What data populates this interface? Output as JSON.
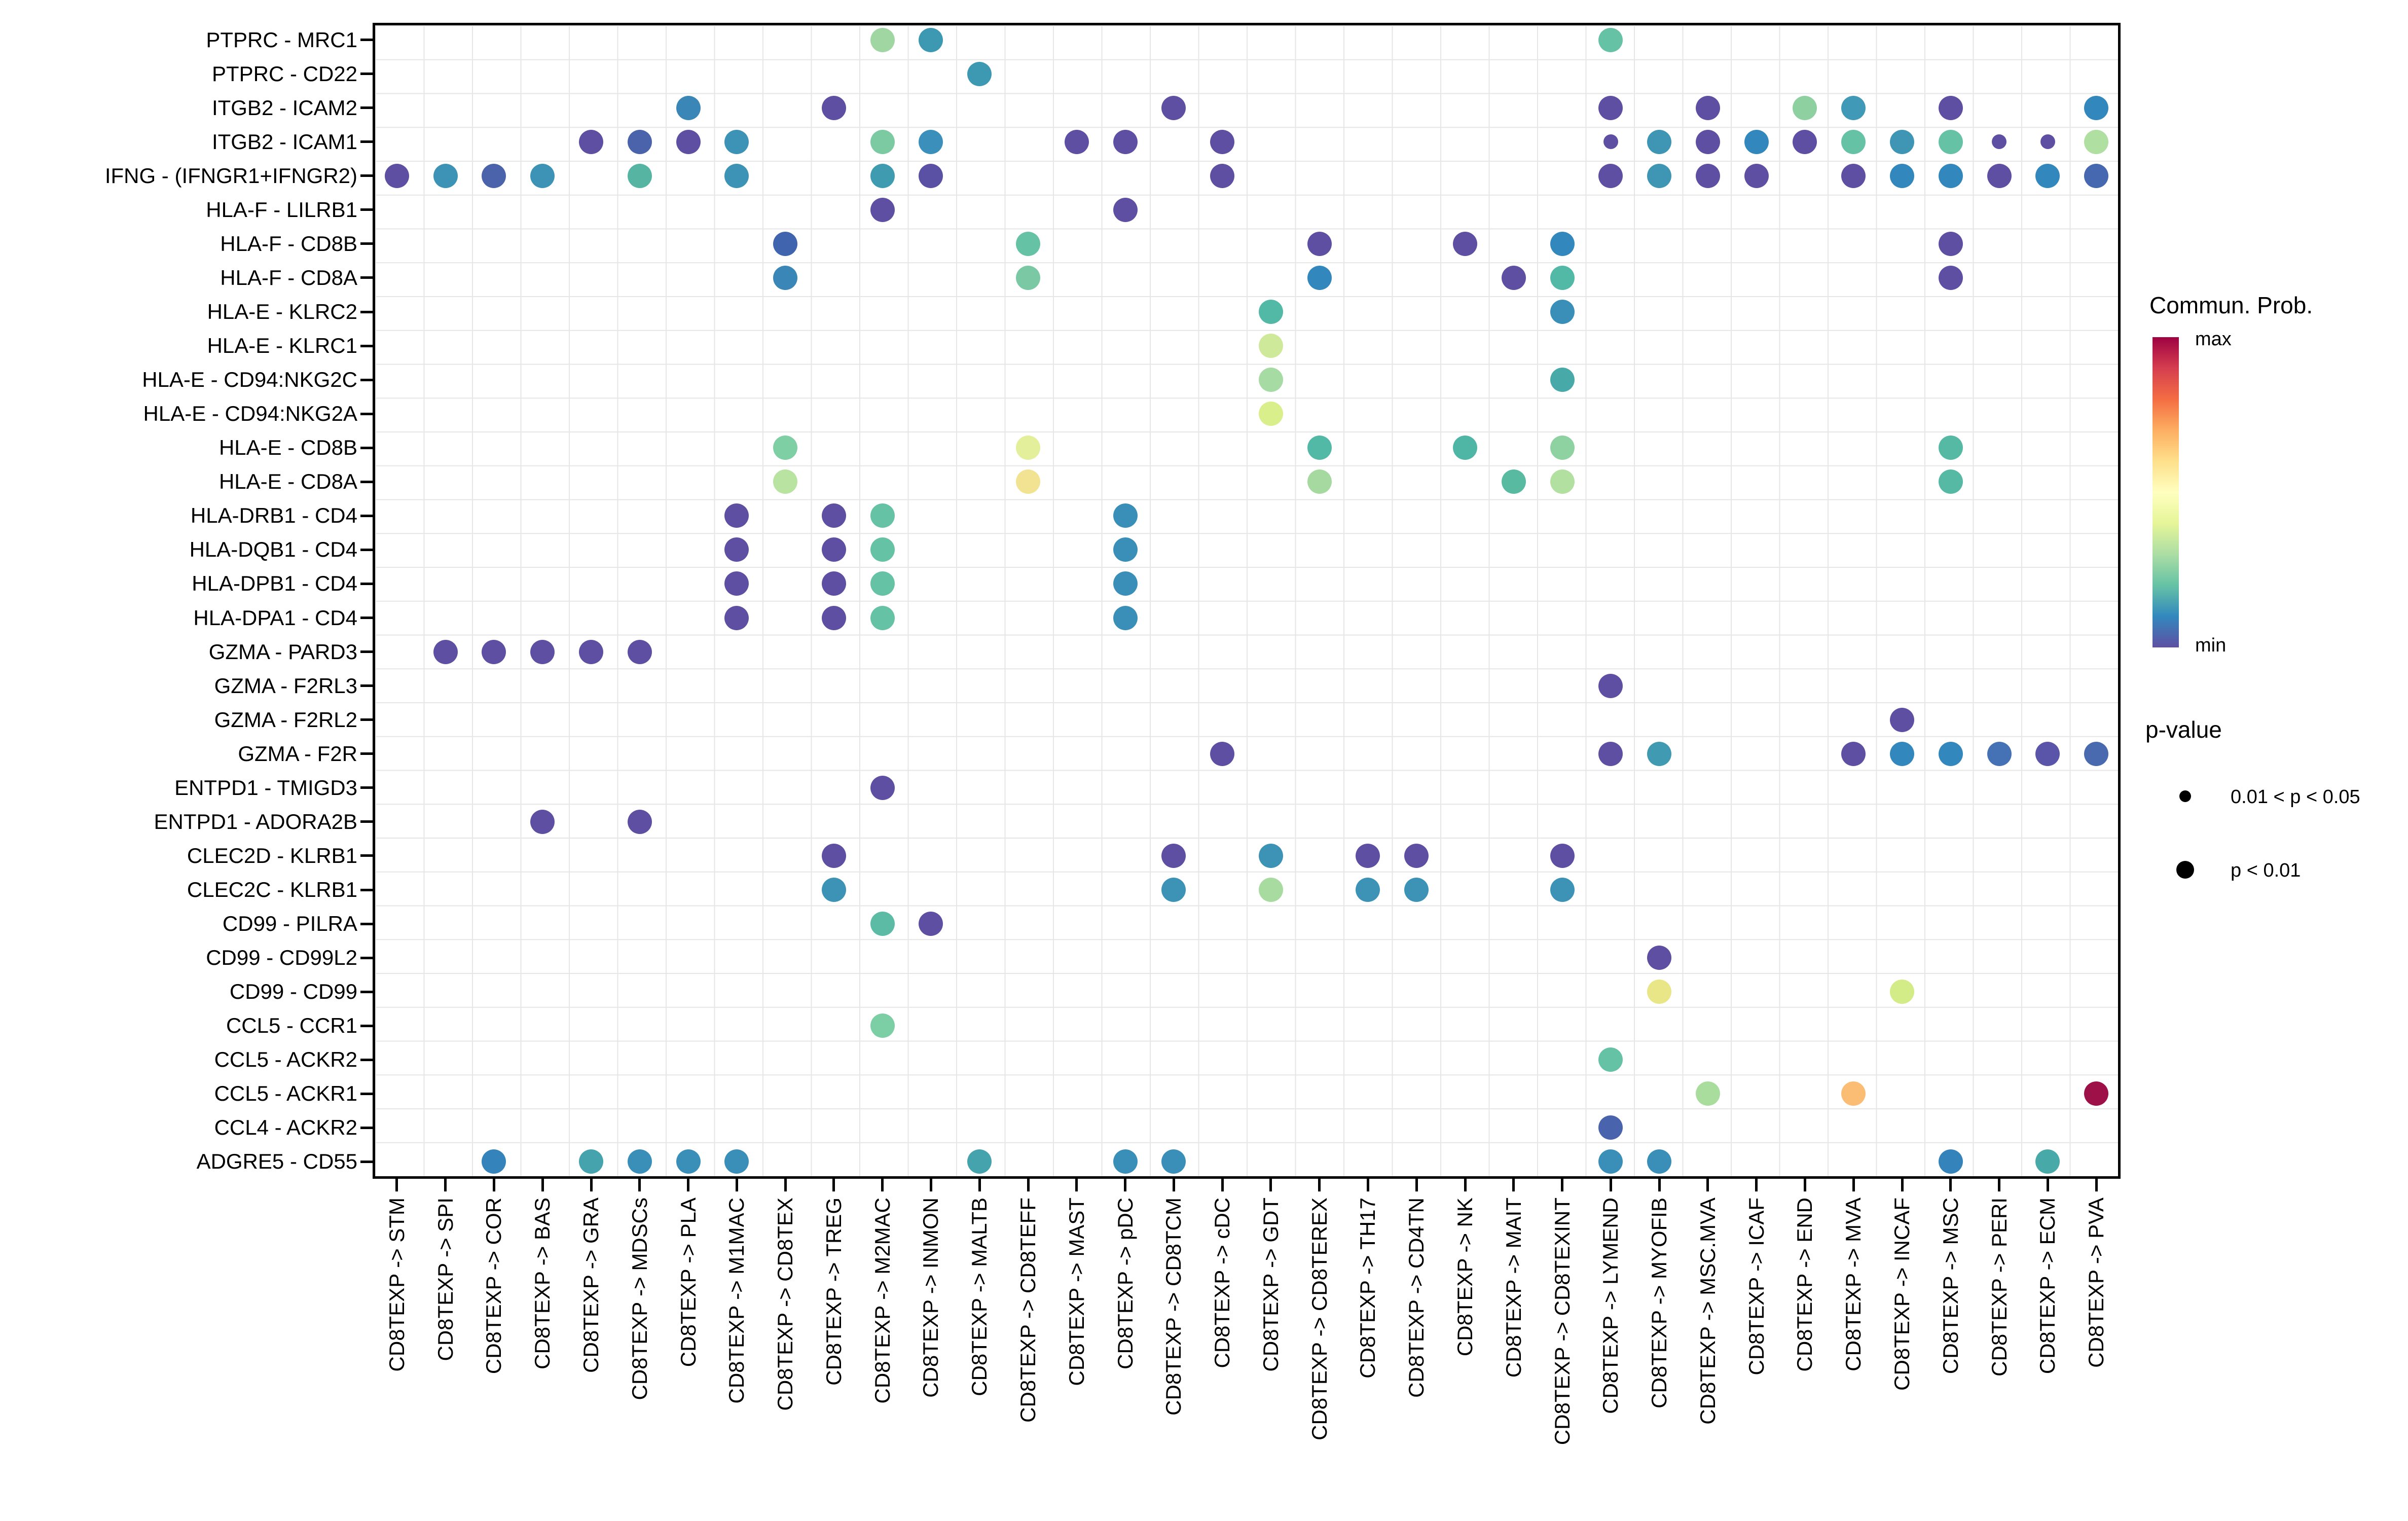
{
  "chart_data": {
    "type": "scatter",
    "subtype": "bubble-matrix (CellChat netVisual_bubble style dot plot)",
    "title": "",
    "xlabel": "",
    "ylabel": "",
    "grid": "on",
    "x_categories": [
      "CD8TEXP -> STM",
      "CD8TEXP -> SPI",
      "CD8TEXP -> COR",
      "CD8TEXP -> BAS",
      "CD8TEXP -> GRA",
      "CD8TEXP -> MDSCs",
      "CD8TEXP -> PLA",
      "CD8TEXP -> M1MAC",
      "CD8TEXP -> CD8TEX",
      "CD8TEXP -> TREG",
      "CD8TEXP -> M2MAC",
      "CD8TEXP -> INMON",
      "CD8TEXP -> MALTB",
      "CD8TEXP -> CD8TEFF",
      "CD8TEXP -> MAST",
      "CD8TEXP -> pDC",
      "CD8TEXP -> CD8TCM",
      "CD8TEXP -> cDC",
      "CD8TEXP -> GDT",
      "CD8TEXP -> CD8TEREX",
      "CD8TEXP -> TH17",
      "CD8TEXP -> CD4TN",
      "CD8TEXP -> NK",
      "CD8TEXP -> MAIT",
      "CD8TEXP -> CD8TEXINT",
      "CD8TEXP -> LYMEND",
      "CD8TEXP -> MYOFIB",
      "CD8TEXP -> MSC.MVA",
      "CD8TEXP -> ICAF",
      "CD8TEXP -> END",
      "CD8TEXP -> MVA",
      "CD8TEXP -> INCAF",
      "CD8TEXP -> MSC",
      "CD8TEXP -> PERI",
      "CD8TEXP -> ECM",
      "CD8TEXP -> PVA"
    ],
    "y_categories": [
      "PTPRC - MRC1",
      "PTPRC - CD22",
      "ITGB2 - ICAM2",
      "ITGB2 - ICAM1",
      "IFNG - (IFNGR1+IFNGR2)",
      "HLA-F - LILRB1",
      "HLA-F - CD8B",
      "HLA-F - CD8A",
      "HLA-E - KLRC2",
      "HLA-E - KLRC1",
      "HLA-E - CD94:NKG2C",
      "HLA-E - CD94:NKG2A",
      "HLA-E - CD8B",
      "HLA-E - CD8A",
      "HLA-DRB1 - CD4",
      "HLA-DQB1 - CD4",
      "HLA-DPB1 - CD4",
      "HLA-DPA1 - CD4",
      "GZMA - PARD3",
      "GZMA - F2RL3",
      "GZMA - F2RL2",
      "GZMA - F2R",
      "ENTPD1 - TMIGD3",
      "ENTPD1 - ADORA2B",
      "CLEC2D - KLRB1",
      "CLEC2C - KLRB1",
      "CD99 - PILRA",
      "CD99 - CD99L2",
      "CD99 - CD99",
      "CCL5 - CCR1",
      "CCL5 - ACKR2",
      "CCL5 - ACKR1",
      "CCL4 - ACKR2",
      "ADGRE5 - CD55"
    ],
    "color_legend": {
      "title": "Commun. Prob.",
      "max_label": "max",
      "min_label": "min",
      "palette": "reversed Spectral (RColorBrewer)",
      "stops_bottom_to_top": [
        "#5e4fa2",
        "#3288bd",
        "#66c2a5",
        "#abdda4",
        "#e6f598",
        "#ffffbf",
        "#fee08b",
        "#fdae61",
        "#f46d43",
        "#d53e4f",
        "#9e0142"
      ]
    },
    "size_legend": {
      "title": "p-value",
      "items": [
        {
          "label": "0.01 < p < 0.05",
          "size": "small"
        },
        {
          "label": "p < 0.01",
          "size": "large"
        }
      ]
    },
    "points": [
      {
        "r": 0,
        "c": 10,
        "color": "#9fd6a2"
      },
      {
        "r": 0,
        "c": 11,
        "color": "#3d98b2"
      },
      {
        "r": 0,
        "c": 25,
        "color": "#66c2a5"
      },
      {
        "r": 1,
        "c": 12,
        "color": "#3d98b2"
      },
      {
        "r": 2,
        "c": 6,
        "color": "#3a87b7"
      },
      {
        "r": 2,
        "c": 9,
        "color": "#5e4fa2"
      },
      {
        "r": 2,
        "c": 16,
        "color": "#5e4fa2"
      },
      {
        "r": 2,
        "c": 25,
        "color": "#5e4fa2"
      },
      {
        "r": 2,
        "c": 27,
        "color": "#5e4fa2"
      },
      {
        "r": 2,
        "c": 29,
        "color": "#8fd0a0"
      },
      {
        "r": 2,
        "c": 30,
        "color": "#4199b8"
      },
      {
        "r": 2,
        "c": 32,
        "color": "#5e4fa2"
      },
      {
        "r": 2,
        "c": 35,
        "color": "#3288bd"
      },
      {
        "r": 3,
        "c": 4,
        "color": "#5e4fa2"
      },
      {
        "r": 3,
        "c": 5,
        "color": "#4a63ab"
      },
      {
        "r": 3,
        "c": 6,
        "color": "#5e4fa2"
      },
      {
        "r": 3,
        "c": 7,
        "color": "#3d93b5"
      },
      {
        "r": 3,
        "c": 10,
        "color": "#7ccaa2"
      },
      {
        "r": 3,
        "c": 11,
        "color": "#3a8fbb"
      },
      {
        "r": 3,
        "c": 14,
        "color": "#5e4fa2"
      },
      {
        "r": 3,
        "c": 15,
        "color": "#5e4fa2"
      },
      {
        "r": 3,
        "c": 17,
        "color": "#5e4fa2"
      },
      {
        "r": 3,
        "c": 25,
        "color": "#5e4fa2",
        "small": true
      },
      {
        "r": 3,
        "c": 26,
        "color": "#3f96b4"
      },
      {
        "r": 3,
        "c": 27,
        "color": "#5e4fa2"
      },
      {
        "r": 3,
        "c": 28,
        "color": "#3288bd"
      },
      {
        "r": 3,
        "c": 29,
        "color": "#5e4fa2"
      },
      {
        "r": 3,
        "c": 30,
        "color": "#66c2a5"
      },
      {
        "r": 3,
        "c": 31,
        "color": "#3f96b4"
      },
      {
        "r": 3,
        "c": 32,
        "color": "#66c2a5"
      },
      {
        "r": 3,
        "c": 33,
        "color": "#5e4fa2",
        "small": true
      },
      {
        "r": 3,
        "c": 34,
        "color": "#5e4fa2",
        "small": true
      },
      {
        "r": 3,
        "c": 35,
        "color": "#b0dfa2"
      },
      {
        "r": 4,
        "c": 0,
        "color": "#5e4fa2"
      },
      {
        "r": 4,
        "c": 1,
        "color": "#3d93b5"
      },
      {
        "r": 4,
        "c": 2,
        "color": "#4a63ab"
      },
      {
        "r": 4,
        "c": 3,
        "color": "#3d93b5"
      },
      {
        "r": 4,
        "c": 5,
        "color": "#56b4a3"
      },
      {
        "r": 4,
        "c": 7,
        "color": "#3d93b5"
      },
      {
        "r": 4,
        "c": 10,
        "color": "#3f9cb0"
      },
      {
        "r": 4,
        "c": 11,
        "color": "#5a51a5"
      },
      {
        "r": 4,
        "c": 17,
        "color": "#5e4fa2"
      },
      {
        "r": 4,
        "c": 25,
        "color": "#5e4fa2"
      },
      {
        "r": 4,
        "c": 26,
        "color": "#3f96b4"
      },
      {
        "r": 4,
        "c": 27,
        "color": "#5e4fa2"
      },
      {
        "r": 4,
        "c": 28,
        "color": "#5e4fa2"
      },
      {
        "r": 4,
        "c": 30,
        "color": "#5e4fa2"
      },
      {
        "r": 4,
        "c": 31,
        "color": "#3288bd"
      },
      {
        "r": 4,
        "c": 32,
        "color": "#3288bd"
      },
      {
        "r": 4,
        "c": 33,
        "color": "#5e4fa2"
      },
      {
        "r": 4,
        "c": 34,
        "color": "#3288bd"
      },
      {
        "r": 4,
        "c": 35,
        "color": "#4668b0"
      },
      {
        "r": 5,
        "c": 10,
        "color": "#5e4fa2"
      },
      {
        "r": 5,
        "c": 15,
        "color": "#5e4fa2"
      },
      {
        "r": 6,
        "c": 8,
        "color": "#4064ae"
      },
      {
        "r": 6,
        "c": 13,
        "color": "#66c2a5"
      },
      {
        "r": 6,
        "c": 19,
        "color": "#5e4fa2"
      },
      {
        "r": 6,
        "c": 22,
        "color": "#5e4fa2"
      },
      {
        "r": 6,
        "c": 24,
        "color": "#3288bd"
      },
      {
        "r": 6,
        "c": 32,
        "color": "#5e4fa2"
      },
      {
        "r": 7,
        "c": 8,
        "color": "#3a87b7"
      },
      {
        "r": 7,
        "c": 13,
        "color": "#7ac8a4"
      },
      {
        "r": 7,
        "c": 19,
        "color": "#3288bd"
      },
      {
        "r": 7,
        "c": 23,
        "color": "#5e4fa2"
      },
      {
        "r": 7,
        "c": 24,
        "color": "#52b9a6"
      },
      {
        "r": 7,
        "c": 32,
        "color": "#5e4fa2"
      },
      {
        "r": 8,
        "c": 18,
        "color": "#52b9a6"
      },
      {
        "r": 8,
        "c": 24,
        "color": "#3a8fb9"
      },
      {
        "r": 9,
        "c": 18,
        "color": "#cfe99b"
      },
      {
        "r": 10,
        "c": 18,
        "color": "#a6dba4"
      },
      {
        "r": 10,
        "c": 24,
        "color": "#48aaa8"
      },
      {
        "r": 11,
        "c": 18,
        "color": "#d9ef8b"
      },
      {
        "r": 12,
        "c": 8,
        "color": "#7ecfa4"
      },
      {
        "r": 12,
        "c": 13,
        "color": "#e3ef9a"
      },
      {
        "r": 12,
        "c": 19,
        "color": "#52b9a6"
      },
      {
        "r": 12,
        "c": 22,
        "color": "#4fb5a5"
      },
      {
        "r": 12,
        "c": 24,
        "color": "#8fd2a2"
      },
      {
        "r": 12,
        "c": 32,
        "color": "#55b9a4"
      },
      {
        "r": 13,
        "c": 8,
        "color": "#b9e3a0"
      },
      {
        "r": 13,
        "c": 13,
        "color": "#f2e392"
      },
      {
        "r": 13,
        "c": 19,
        "color": "#a5d9a0"
      },
      {
        "r": 13,
        "c": 23,
        "color": "#58bba1"
      },
      {
        "r": 13,
        "c": 24,
        "color": "#b2e0a0"
      },
      {
        "r": 13,
        "c": 32,
        "color": "#55b9a4"
      },
      {
        "r": 14,
        "c": 7,
        "color": "#5e4fa2"
      },
      {
        "r": 14,
        "c": 9,
        "color": "#5e4fa2"
      },
      {
        "r": 14,
        "c": 10,
        "color": "#66c2a5"
      },
      {
        "r": 14,
        "c": 15,
        "color": "#3a8fb9"
      },
      {
        "r": 15,
        "c": 7,
        "color": "#5e4fa2"
      },
      {
        "r": 15,
        "c": 9,
        "color": "#5e4fa2"
      },
      {
        "r": 15,
        "c": 10,
        "color": "#66c2a5"
      },
      {
        "r": 15,
        "c": 15,
        "color": "#3a8fb9"
      },
      {
        "r": 16,
        "c": 7,
        "color": "#5e4fa2"
      },
      {
        "r": 16,
        "c": 9,
        "color": "#5e4fa2"
      },
      {
        "r": 16,
        "c": 10,
        "color": "#66c2a5"
      },
      {
        "r": 16,
        "c": 15,
        "color": "#3a8fb9"
      },
      {
        "r": 17,
        "c": 7,
        "color": "#5e4fa2"
      },
      {
        "r": 17,
        "c": 9,
        "color": "#5e4fa2"
      },
      {
        "r": 17,
        "c": 10,
        "color": "#66c2a5"
      },
      {
        "r": 17,
        "c": 15,
        "color": "#3a8fb9"
      },
      {
        "r": 18,
        "c": 1,
        "color": "#5e4fa2"
      },
      {
        "r": 18,
        "c": 2,
        "color": "#5e4fa2"
      },
      {
        "r": 18,
        "c": 3,
        "color": "#5e4fa2"
      },
      {
        "r": 18,
        "c": 4,
        "color": "#5e4fa2"
      },
      {
        "r": 18,
        "c": 5,
        "color": "#5e4fa2"
      },
      {
        "r": 19,
        "c": 25,
        "color": "#5e4fa2"
      },
      {
        "r": 20,
        "c": 31,
        "color": "#5e4fa2"
      },
      {
        "r": 21,
        "c": 17,
        "color": "#5e4fa2"
      },
      {
        "r": 21,
        "c": 25,
        "color": "#5e4fa2"
      },
      {
        "r": 21,
        "c": 26,
        "color": "#3f9ab2"
      },
      {
        "r": 21,
        "c": 30,
        "color": "#5e4fa2"
      },
      {
        "r": 21,
        "c": 31,
        "color": "#3288bd"
      },
      {
        "r": 21,
        "c": 32,
        "color": "#3288bd"
      },
      {
        "r": 21,
        "c": 33,
        "color": "#4472b4"
      },
      {
        "r": 21,
        "c": 34,
        "color": "#5a55a8"
      },
      {
        "r": 21,
        "c": 35,
        "color": "#4a6ab0"
      },
      {
        "r": 22,
        "c": 10,
        "color": "#5e4fa2"
      },
      {
        "r": 23,
        "c": 3,
        "color": "#5e4fa2"
      },
      {
        "r": 23,
        "c": 5,
        "color": "#5e4fa2"
      },
      {
        "r": 24,
        "c": 9,
        "color": "#5e4fa2"
      },
      {
        "r": 24,
        "c": 16,
        "color": "#5e4fa2"
      },
      {
        "r": 24,
        "c": 18,
        "color": "#3c93b5"
      },
      {
        "r": 24,
        "c": 20,
        "color": "#5e4fa2"
      },
      {
        "r": 24,
        "c": 21,
        "color": "#5e4fa2"
      },
      {
        "r": 24,
        "c": 24,
        "color": "#5e4fa2"
      },
      {
        "r": 25,
        "c": 9,
        "color": "#3c93b5"
      },
      {
        "r": 25,
        "c": 16,
        "color": "#3c93b5"
      },
      {
        "r": 25,
        "c": 18,
        "color": "#a8dba0"
      },
      {
        "r": 25,
        "c": 20,
        "color": "#3c93b5"
      },
      {
        "r": 25,
        "c": 21,
        "color": "#3c93b5"
      },
      {
        "r": 25,
        "c": 24,
        "color": "#3c93b5"
      },
      {
        "r": 26,
        "c": 10,
        "color": "#5bbba5"
      },
      {
        "r": 26,
        "c": 11,
        "color": "#5e4fa2"
      },
      {
        "r": 27,
        "c": 26,
        "color": "#5e4fa2"
      },
      {
        "r": 28,
        "c": 26,
        "color": "#e8e687"
      },
      {
        "r": 28,
        "c": 31,
        "color": "#d3ec87"
      },
      {
        "r": 29,
        "c": 10,
        "color": "#7ccfa4"
      },
      {
        "r": 30,
        "c": 25,
        "color": "#66c2a5"
      },
      {
        "r": 31,
        "c": 27,
        "color": "#a8dd9e"
      },
      {
        "r": 31,
        "c": 30,
        "color": "#fbbd74"
      },
      {
        "r": 31,
        "c": 35,
        "color": "#9e1048"
      },
      {
        "r": 32,
        "c": 25,
        "color": "#4a63ad"
      },
      {
        "r": 33,
        "c": 2,
        "color": "#3583bb"
      },
      {
        "r": 33,
        "c": 4,
        "color": "#45a3ad"
      },
      {
        "r": 33,
        "c": 5,
        "color": "#3a8fb9"
      },
      {
        "r": 33,
        "c": 6,
        "color": "#3a8fb9"
      },
      {
        "r": 33,
        "c": 7,
        "color": "#3a8fb9"
      },
      {
        "r": 33,
        "c": 12,
        "color": "#45a3ad"
      },
      {
        "r": 33,
        "c": 15,
        "color": "#3a8fb9"
      },
      {
        "r": 33,
        "c": 16,
        "color": "#3a8fb9"
      },
      {
        "r": 33,
        "c": 25,
        "color": "#3a8fb9"
      },
      {
        "r": 33,
        "c": 26,
        "color": "#3a8fb9"
      },
      {
        "r": 33,
        "c": 32,
        "color": "#3583bb"
      },
      {
        "r": 33,
        "c": 34,
        "color": "#48aaa8"
      }
    ]
  }
}
